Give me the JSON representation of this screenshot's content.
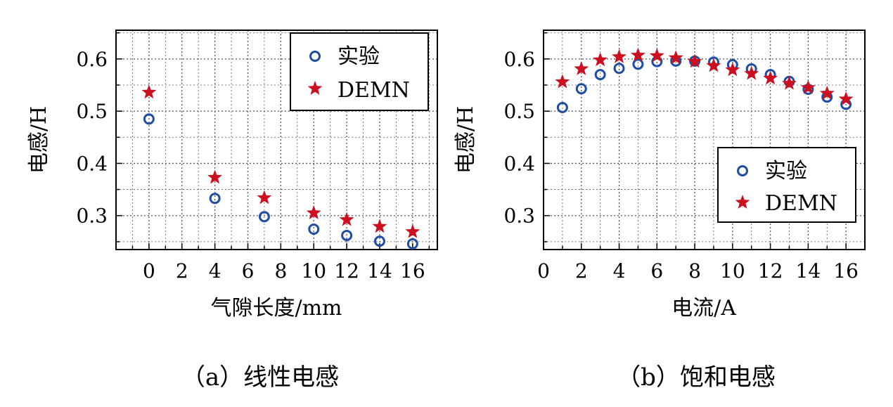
{
  "colors": {
    "experiment": "#1f4ea3",
    "demn": "#cc1020",
    "grid": "#555555",
    "axis": "#000000"
  },
  "chart_data": [
    {
      "type": "scatter",
      "caption": "（a）线性电感",
      "xlabel": "气隙长度/mm",
      "ylabel": "电感/H",
      "xlim": [
        -2,
        17.5
      ],
      "ylim": [
        0.235,
        0.655
      ],
      "xticks": [
        0,
        2,
        4,
        6,
        8,
        10,
        12,
        14,
        16
      ],
      "yticks": [
        0.3,
        0.4,
        0.5,
        0.6
      ],
      "ytick_labels": [
        "0.3",
        "0.4",
        "0.5",
        "0.6"
      ],
      "grid": true,
      "legend_position": "top-right",
      "series": [
        {
          "name": "实验",
          "marker": "circle",
          "x": [
            0,
            4,
            7,
            10,
            12,
            14,
            16
          ],
          "y": [
            0.485,
            0.333,
            0.298,
            0.274,
            0.262,
            0.251,
            0.246
          ]
        },
        {
          "name": "DEMN",
          "marker": "star",
          "x": [
            0,
            4,
            7,
            10,
            12,
            14,
            16
          ],
          "y": [
            0.536,
            0.373,
            0.334,
            0.305,
            0.292,
            0.279,
            0.269
          ]
        }
      ]
    },
    {
      "type": "scatter",
      "caption": "（b）饱和电感",
      "xlabel": "电流/A",
      "ylabel": "电感/H",
      "xlim": [
        0,
        17
      ],
      "ylim": [
        0.235,
        0.655
      ],
      "xticks": [
        0,
        2,
        4,
        6,
        8,
        10,
        12,
        14,
        16
      ],
      "yticks": [
        0.3,
        0.4,
        0.5,
        0.6
      ],
      "ytick_labels": [
        "0.3",
        "0.4",
        "0.5",
        "0.6"
      ],
      "grid": true,
      "legend_position": "bottom-right",
      "series": [
        {
          "name": "实验",
          "marker": "circle",
          "x": [
            1,
            2,
            3,
            4,
            5,
            6,
            7,
            8,
            9,
            10,
            11,
            12,
            13,
            14,
            15,
            16
          ],
          "y": [
            0.507,
            0.543,
            0.57,
            0.582,
            0.59,
            0.595,
            0.596,
            0.596,
            0.594,
            0.589,
            0.581,
            0.57,
            0.557,
            0.542,
            0.527,
            0.513
          ]
        },
        {
          "name": "DEMN",
          "marker": "star",
          "x": [
            1,
            2,
            3,
            4,
            5,
            6,
            7,
            8,
            9,
            10,
            11,
            12,
            13,
            14,
            15,
            16
          ],
          "y": [
            0.556,
            0.581,
            0.598,
            0.604,
            0.607,
            0.606,
            0.602,
            0.595,
            0.587,
            0.579,
            0.572,
            0.563,
            0.553,
            0.545,
            0.534,
            0.523
          ]
        }
      ]
    }
  ]
}
